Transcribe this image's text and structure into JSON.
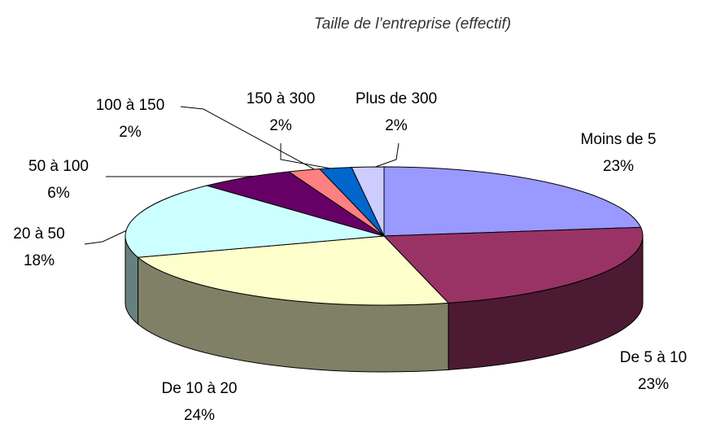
{
  "chart_data": {
    "type": "pie3d",
    "title": "Taille de l’entreprise (effectif)",
    "categories": [
      "Moins de 5",
      "De 5 à 10",
      "De 10 à 20",
      "20 à 50",
      "50 à 100",
      "100 à 150",
      "150 à 300",
      "Plus de 300"
    ],
    "values": [
      23,
      23,
      24,
      18,
      6,
      2,
      2,
      2
    ],
    "value_labels": [
      "23%",
      "23%",
      "24%",
      "18%",
      "6%",
      "2%",
      "2%",
      "2%"
    ],
    "colors": [
      "#9999ff",
      "#993366",
      "#ffffcc",
      "#ccffff",
      "#660066",
      "#ff8080",
      "#0066cc",
      "#ccccff"
    ]
  }
}
